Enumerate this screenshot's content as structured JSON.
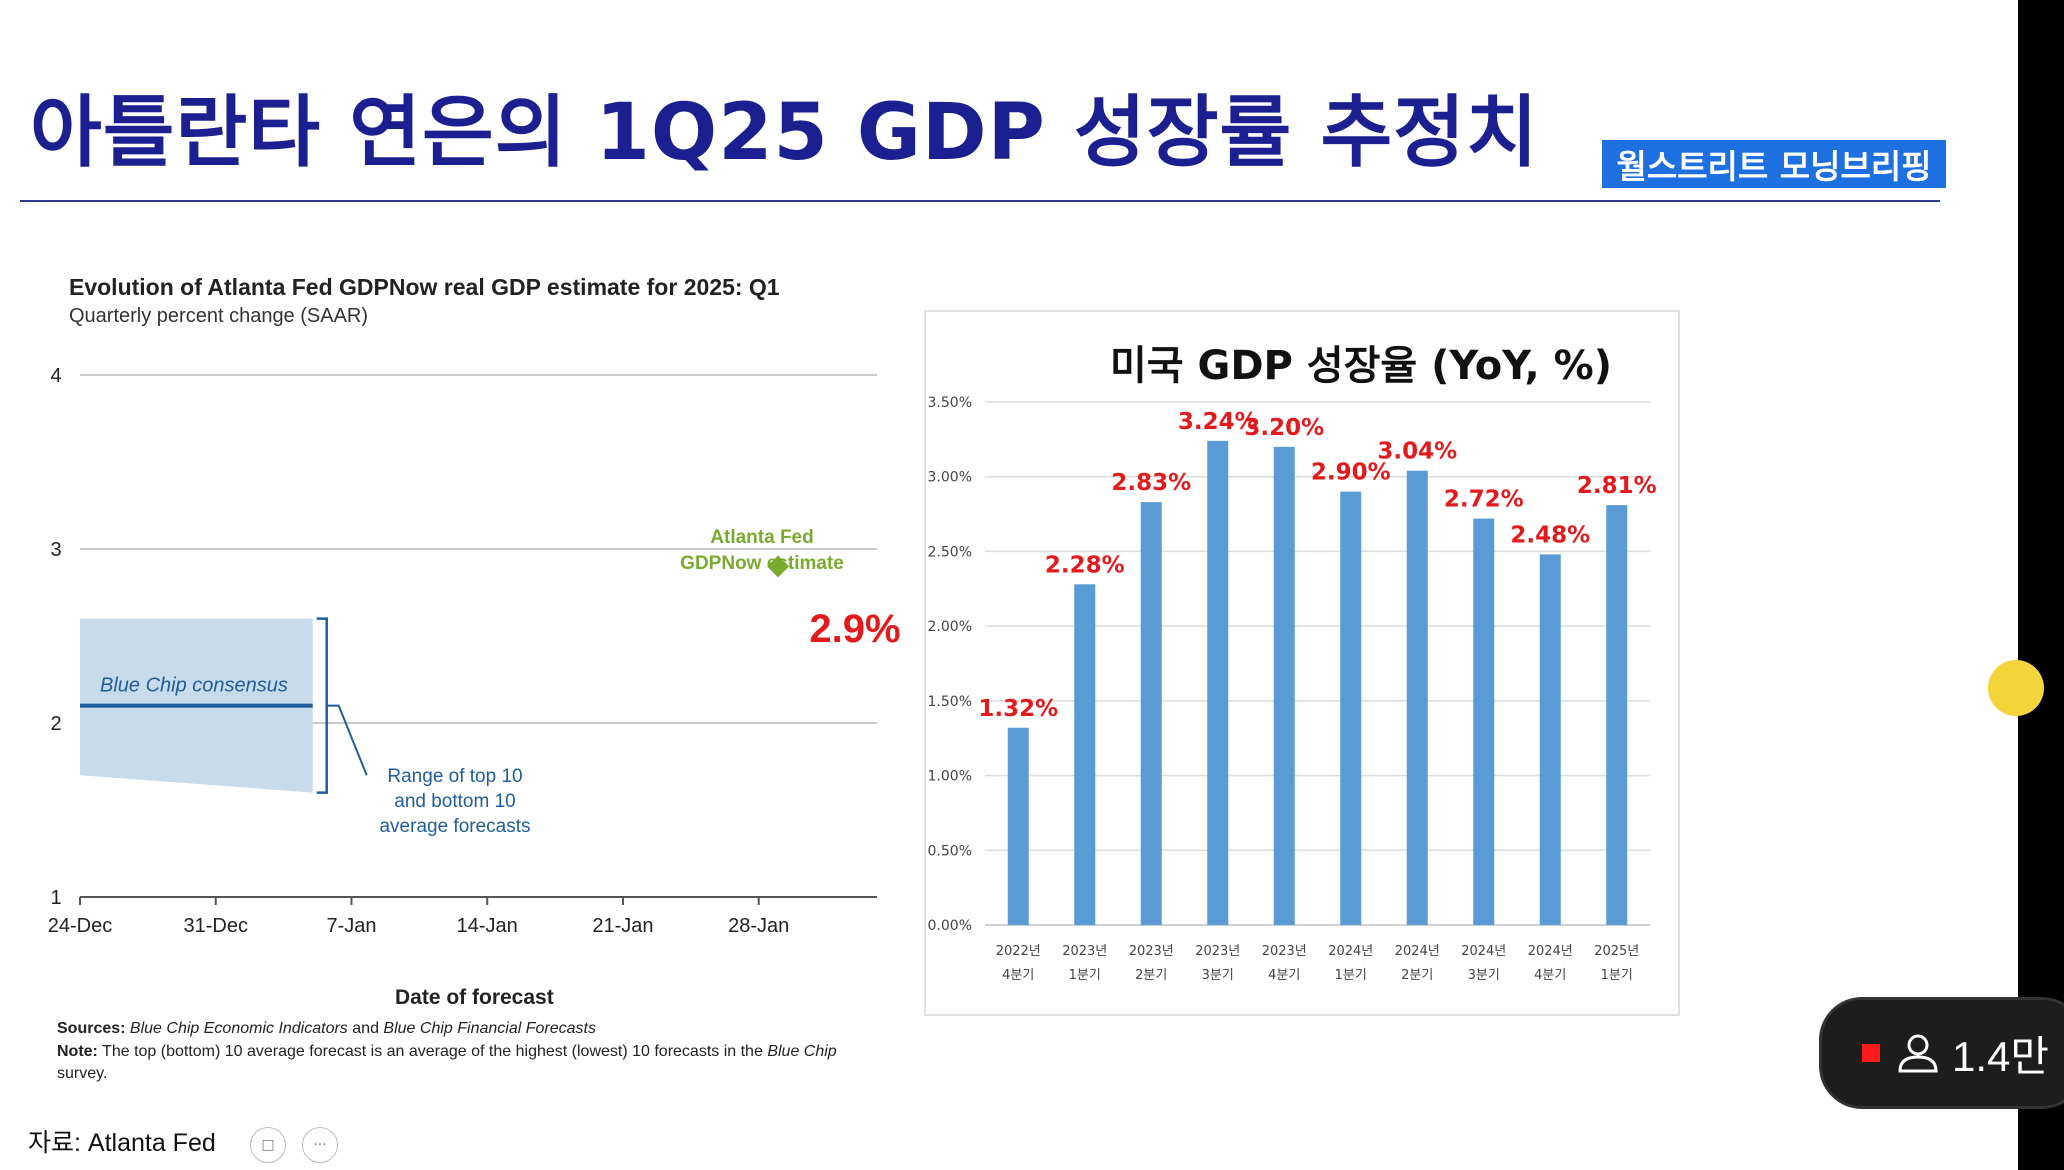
{
  "slide_title": "아틀란타 연은의 1Q25 GDP 성장률 추정치",
  "brand_label": "월스트리트 모닝브리핑",
  "source_text": "자료: Atlanta Fed",
  "viewer_count": "1.4만",
  "colors": {
    "title": "#1c1f8f",
    "brand_bg": "#1e6fe0",
    "bar": "#5b9bd5",
    "bar_label": "#e31a1c",
    "gdpnow": "#7aab2e",
    "consensus_line": "#1f5d9c",
    "consensus_band": "#c7dbea"
  },
  "icons": [
    "person-icon",
    "camera-icon",
    "more-icon",
    "record-icon"
  ],
  "chart_data": [
    {
      "type": "line",
      "title": "Evolution of Atlanta Fed GDPNow real GDP estimate for 2025: Q1",
      "subtitle": "Quarterly percent change (SAAR)",
      "xlabel": "Date of forecast",
      "ylabel": "",
      "x_ticks": [
        "24-Dec",
        "31-Dec",
        "7-Jan",
        "14-Jan",
        "21-Jan",
        "28-Jan"
      ],
      "y_ticks": [
        1,
        2,
        3,
        4
      ],
      "ylim": [
        1,
        4
      ],
      "series": [
        {
          "name": "Atlanta Fed GDPNow estimate",
          "points": [
            {
              "x": "29-Jan",
              "y": 2.9
            }
          ]
        },
        {
          "name": "Blue Chip consensus",
          "points": [
            {
              "x": "24-Dec",
              "y": 2.1
            },
            {
              "x": "5-Jan",
              "y": 2.1
            }
          ]
        }
      ],
      "range_band": {
        "upper": [
          {
            "x": "24-Dec",
            "y": 2.6
          },
          {
            "x": "5-Jan",
            "y": 2.6
          }
        ],
        "lower": [
          {
            "x": "24-Dec",
            "y": 1.7
          },
          {
            "x": "5-Jan",
            "y": 1.6
          }
        ]
      },
      "annotations": {
        "gdpnow_line1": "Atlanta Fed",
        "gdpnow_line2": "GDPNow estimate",
        "gdpnow_value": "2.9%",
        "consensus": "Blue Chip consensus",
        "range_line1": "Range of top 10",
        "range_line2": "and bottom 10",
        "range_line3": "average forecasts"
      },
      "sources_label": "Sources:",
      "sources_text1": "Blue Chip Economic Indicators",
      "sources_and": "and",
      "sources_text2": "Blue Chip Financial Forecasts",
      "note_label": "Note:",
      "note_text": "The top (bottom) 10 average forecast is an average of the highest (lowest) 10 forecasts in the",
      "note_italic": "Blue Chip",
      "note_end": "survey."
    },
    {
      "type": "bar",
      "title": "미국 GDP 성장율 (YoY, %)",
      "categories": [
        [
          "2022년",
          "4분기"
        ],
        [
          "2023년",
          "1분기"
        ],
        [
          "2023년",
          "2분기"
        ],
        [
          "2023년",
          "3분기"
        ],
        [
          "2023년",
          "4분기"
        ],
        [
          "2024년",
          "1분기"
        ],
        [
          "2024년",
          "2분기"
        ],
        [
          "2024년",
          "3분기"
        ],
        [
          "2024년",
          "4분기"
        ],
        [
          "2025년",
          "1분기"
        ]
      ],
      "values": [
        1.32,
        2.28,
        2.83,
        3.24,
        3.2,
        2.9,
        3.04,
        2.72,
        2.48,
        2.81
      ],
      "data_labels": [
        "1.32%",
        "2.28%",
        "2.83%",
        "3.24%",
        "3.20%",
        "2.90%",
        "3.04%",
        "2.72%",
        "2.48%",
        "2.81%"
      ],
      "y_ticks": [
        "0.00%",
        "0.50%",
        "1.00%",
        "1.50%",
        "2.00%",
        "2.50%",
        "3.00%",
        "3.50%"
      ],
      "ylim": [
        0,
        3.5
      ],
      "grid": true
    }
  ]
}
